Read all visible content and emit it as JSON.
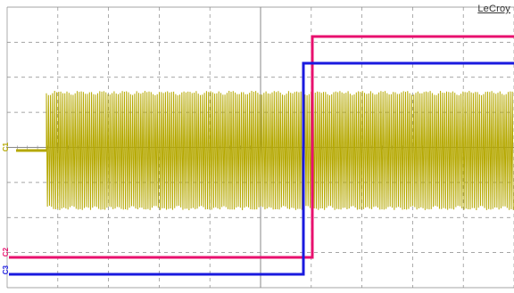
{
  "window": {
    "brand_label": "LeCroy"
  },
  "channels": [
    {
      "id": "C1",
      "marker_label": "C1",
      "color": "#b5a800",
      "signal": "gated-burst-oscillation"
    },
    {
      "id": "C2",
      "marker_label": "C2",
      "color": "#e8106e",
      "signal": "step-high"
    },
    {
      "id": "C3",
      "marker_label": "C3",
      "color": "#1a1adf",
      "signal": "step-high"
    }
  ],
  "grid": {
    "divisions_x": 10,
    "divisions_y": 8,
    "line_style": "dashed",
    "color": "#888888"
  },
  "background": "#ffffff"
}
